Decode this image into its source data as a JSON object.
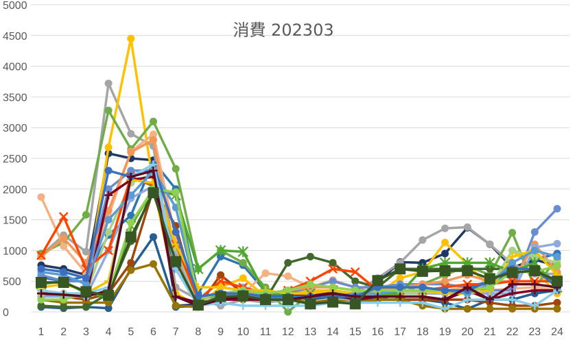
{
  "chart_data": {
    "type": "line",
    "title": "消費 202303",
    "xlabel": "",
    "ylabel": "",
    "ylim": [
      0,
      5000
    ],
    "yticks": [
      0,
      500,
      1000,
      1500,
      2000,
      2500,
      3000,
      3500,
      4000,
      4500,
      5000
    ],
    "grid": "horizontal",
    "legend": "none",
    "x": [
      1,
      2,
      3,
      4,
      5,
      6,
      7,
      8,
      9,
      10,
      11,
      12,
      13,
      14,
      15,
      16,
      17,
      18,
      19,
      20,
      21,
      22,
      23,
      24
    ],
    "series": [
      {
        "color": "#2e75b6",
        "marker": "circle",
        "values": [
          560,
          500,
          580,
          1250,
          1570,
          2450,
          2000,
          300,
          900,
          760,
          330,
          250,
          300,
          350,
          250,
          200,
          300,
          300,
          350,
          400,
          500,
          600,
          850,
          950
        ]
      },
      {
        "color": "#1f3864",
        "marker": "circle",
        "values": [
          760,
          700,
          600,
          2580,
          2500,
          2470,
          100,
          120,
          250,
          250,
          220,
          200,
          220,
          260,
          200,
          480,
          810,
          800,
          950,
          1370,
          1100,
          720,
          850,
          750
        ]
      },
      {
        "color": "#a5a5a5",
        "marker": "circle",
        "values": [
          920,
          1250,
          980,
          3720,
          2900,
          2700,
          400,
          200,
          100,
          200,
          150,
          200,
          250,
          300,
          300,
          550,
          800,
          1170,
          1360,
          1380,
          1100,
          780,
          620,
          620
        ]
      },
      {
        "color": "#ffc000",
        "marker": "circle",
        "values": [
          400,
          450,
          350,
          2680,
          4450,
          2070,
          300,
          100,
          400,
          550,
          250,
          300,
          350,
          350,
          300,
          300,
          550,
          650,
          1130,
          780,
          400,
          1000,
          680,
          300
        ]
      },
      {
        "color": "#70ad47",
        "marker": "circle",
        "values": [
          950,
          1130,
          1580,
          3280,
          2650,
          3100,
          2330,
          700,
          1000,
          800,
          400,
          0,
          300,
          250,
          250,
          250,
          300,
          450,
          600,
          750,
          600,
          1290,
          400,
          870
        ]
      },
      {
        "color": "#f4b183",
        "marker": "circle",
        "values": [
          1870,
          1070,
          630,
          1560,
          2610,
          2890,
          1200,
          180,
          250,
          300,
          630,
          580,
          400,
          520,
          400,
          400,
          330,
          330,
          350,
          400,
          350,
          380,
          400,
          350
        ]
      },
      {
        "color": "#255e91",
        "marker": "circle",
        "values": [
          80,
          60,
          80,
          60,
          700,
          1220,
          80,
          100,
          300,
          350,
          300,
          280,
          200,
          250,
          200,
          200,
          200,
          200,
          150,
          50,
          200,
          200,
          300,
          350
        ]
      },
      {
        "color": "#9e480e",
        "marker": "circle",
        "values": [
          300,
          250,
          200,
          300,
          800,
          2000,
          1400,
          100,
          600,
          300,
          300,
          200,
          150,
          200,
          150,
          200,
          200,
          200,
          200,
          200,
          150,
          100,
          100,
          150
        ]
      },
      {
        "color": "#997300",
        "marker": "circle",
        "values": [
          200,
          150,
          150,
          150,
          680,
          780,
          100,
          80,
          250,
          200,
          200,
          200,
          150,
          200,
          150,
          200,
          200,
          100,
          50,
          50,
          50,
          50,
          50,
          50
        ]
      },
      {
        "color": "#43682b",
        "marker": "circle",
        "values": [
          100,
          80,
          80,
          300,
          1150,
          2000,
          700,
          100,
          200,
          250,
          200,
          800,
          900,
          800,
          500,
          400,
          700,
          700,
          700,
          700,
          700,
          700,
          700,
          500
        ]
      },
      {
        "color": "#698ed0",
        "marker": "circle",
        "values": [
          600,
          500,
          500,
          2000,
          2300,
          2300,
          700,
          100,
          250,
          250,
          300,
          300,
          400,
          500,
          400,
          400,
          450,
          450,
          450,
          400,
          350,
          350,
          1300,
          1680
        ]
      },
      {
        "color": "#f1975a",
        "marker": "circle",
        "values": [
          900,
          1200,
          800,
          1650,
          2600,
          2800,
          900,
          150,
          250,
          300,
          300,
          350,
          400,
          400,
          350,
          350,
          400,
          450,
          500,
          600,
          500,
          500,
          1100,
          650
        ]
      },
      {
        "color": "#8faadc",
        "marker": "circle",
        "values": [
          250,
          250,
          250,
          1000,
          1850,
          2050,
          1000,
          100,
          150,
          400,
          250,
          250,
          300,
          300,
          250,
          300,
          300,
          300,
          300,
          300,
          300,
          300,
          1050,
          1110
        ]
      },
      {
        "color": "#a9d18e",
        "marker": "circle",
        "values": [
          300,
          300,
          300,
          1300,
          2100,
          2250,
          1050,
          150,
          250,
          300,
          250,
          250,
          250,
          250,
          250,
          300,
          300,
          300,
          350,
          350,
          400,
          1000,
          900,
          800
        ]
      },
      {
        "color": "#ff4500",
        "marker": "x",
        "values": [
          920,
          1550,
          700,
          1000,
          2200,
          2050,
          1100,
          200,
          500,
          400,
          300,
          350,
          500,
          700,
          650,
          350,
          350,
          350,
          400,
          450,
          450,
          500,
          500,
          500
        ]
      },
      {
        "color": "#4ea72e",
        "marker": "star",
        "values": [
          450,
          500,
          300,
          250,
          1400,
          2000,
          1900,
          700,
          1000,
          980,
          300,
          300,
          300,
          350,
          300,
          300,
          300,
          700,
          800,
          800,
          800,
          650,
          800,
          400
        ]
      },
      {
        "color": "#7f0020",
        "marker": "plus",
        "values": [
          300,
          300,
          250,
          1900,
          2150,
          2200,
          250,
          150,
          200,
          200,
          200,
          250,
          300,
          300,
          200,
          250,
          250,
          250,
          200,
          350,
          200,
          300,
          350,
          350
        ]
      },
      {
        "color": "#f2c400",
        "marker": "plus",
        "values": [
          350,
          300,
          300,
          500,
          2150,
          2100,
          1100,
          400,
          400,
          350,
          350,
          300,
          300,
          350,
          300,
          350,
          350,
          350,
          300,
          300,
          350,
          900,
          1000,
          600
        ]
      },
      {
        "color": "#5b9bd5",
        "marker": "circle",
        "values": [
          650,
          600,
          450,
          1500,
          1900,
          2300,
          1700,
          200,
          300,
          300,
          200,
          250,
          250,
          250,
          300,
          300,
          350,
          350,
          350,
          300,
          450,
          800,
          1000,
          900
        ]
      },
      {
        "color": "#92d050",
        "marker": "circle",
        "values": [
          200,
          200,
          300,
          300,
          1450,
          2000,
          1950,
          200,
          300,
          350,
          300,
          350,
          450,
          400,
          350,
          350,
          350,
          350,
          350,
          350,
          400,
          650,
          650,
          750
        ]
      },
      {
        "color": "#3a6fbf",
        "marker": "circle",
        "values": [
          700,
          650,
          550,
          2300,
          2200,
          2400,
          1300,
          250,
          300,
          300,
          250,
          250,
          250,
          250,
          250,
          400,
          400,
          400,
          350,
          350,
          500,
          700,
          700,
          400
        ]
      },
      {
        "color": "#87ceeb",
        "marker": "plus",
        "values": [
          350,
          300,
          300,
          400,
          2200,
          2400,
          700,
          100,
          150,
          100,
          100,
          100,
          100,
          150,
          150,
          150,
          150,
          150,
          50,
          200,
          200,
          200,
          100,
          350
        ]
      },
      {
        "color": "#5c0a24",
        "marker": "plus",
        "values": [
          300,
          280,
          250,
          350,
          2200,
          2300,
          250,
          100,
          200,
          250,
          200,
          200,
          250,
          300,
          250,
          250,
          250,
          250,
          200,
          400,
          200,
          450,
          450,
          400
        ]
      },
      {
        "color": "#375623",
        "marker": "square",
        "values": [
          480,
          480,
          330,
          270,
          1220,
          1940,
          820,
          110,
          250,
          260,
          200,
          200,
          130,
          160,
          130,
          510,
          700,
          660,
          670,
          670,
          540,
          640,
          670,
          500
        ]
      }
    ]
  }
}
